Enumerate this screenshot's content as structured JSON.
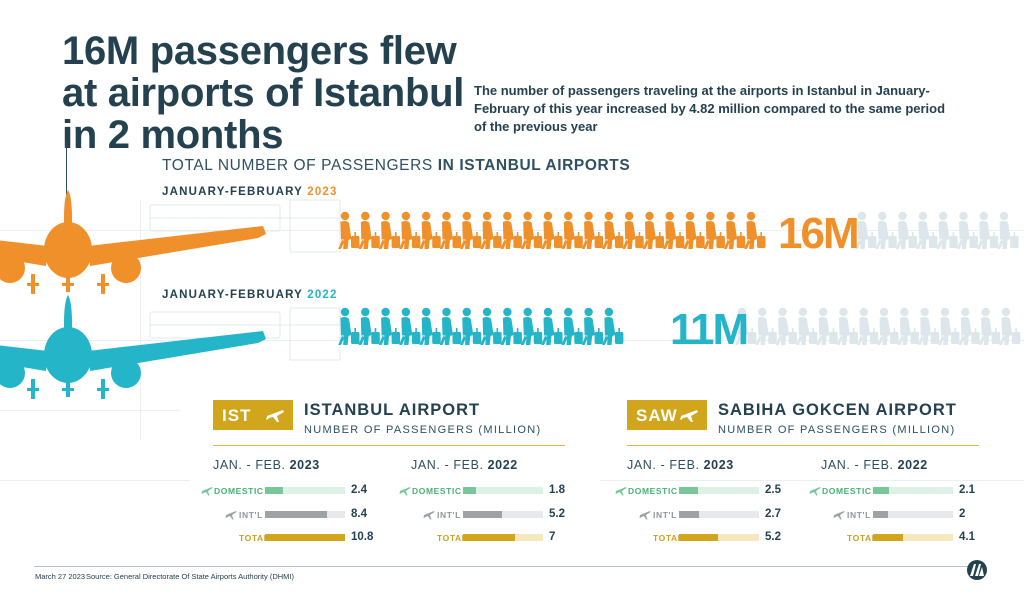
{
  "title": "16M passengers flew at airports of Istanbul in 2 months",
  "subtitle": "The number of passengers traveling at the airports in Istanbul in January-February of this year increased by 4.82 million compared to the same period of the previous year",
  "colors": {
    "orange": "#f0902a",
    "teal": "#25b5c9",
    "gold": "#d2a61c",
    "navy": "#24414f",
    "green": "#77c79b",
    "gray": "#9da2a5",
    "faint": "#dde7eb"
  },
  "chart_data": [
    {
      "type": "bar",
      "title": "TOTAL NUMBER OF PASSENGERS IN ISTANBUL AIRPORTS",
      "title_plain": "TOTAL NUMBER OF PASSENGERS",
      "title_bold": "IN ISTANBUL AIRPORTS",
      "series": [
        {
          "period_prefix": "JANUARY-FEBRUARY",
          "year": "2023",
          "value": 16,
          "label": "16M",
          "color": "#f0902a"
        },
        {
          "period_prefix": "JANUARY-FEBRUARY",
          "year": "2022",
          "value": 11,
          "label": "11M",
          "color": "#25b5c9"
        }
      ]
    },
    {
      "type": "bar",
      "airport": "ISTANBUL AIRPORT",
      "code": "IST",
      "subtitle": "NUMBER OF PASSENGERS (MILLION)",
      "max": 10.8,
      "columns": [
        {
          "period": "JAN. - FEB.",
          "year": "2023",
          "domestic": 2.4,
          "intl": 8.4,
          "total": 10.8
        },
        {
          "period": "JAN. - FEB.",
          "year": "2022",
          "domestic": 1.8,
          "intl": 5.2,
          "total": 7
        }
      ]
    },
    {
      "type": "bar",
      "airport": "SABIHA GOKCEN AIRPORT",
      "code": "SAW",
      "subtitle": "NUMBER OF PASSENGERS (MILLION)",
      "max": 10.8,
      "columns": [
        {
          "period": "JAN. - FEB.",
          "year": "2023",
          "domestic": 2.5,
          "intl": 2.7,
          "total": 5.2
        },
        {
          "period": "JAN. - FEB.",
          "year": "2022",
          "domestic": 2.1,
          "intl": 2,
          "total": 4.1
        }
      ]
    }
  ],
  "row_labels": {
    "domestic": "DOMESTIC",
    "intl": "INT'L",
    "total": "TOTAL"
  },
  "footer": {
    "date": "March 27 2023",
    "source": "Source: General Directorate Of State Airports Authority (DHMI)"
  }
}
